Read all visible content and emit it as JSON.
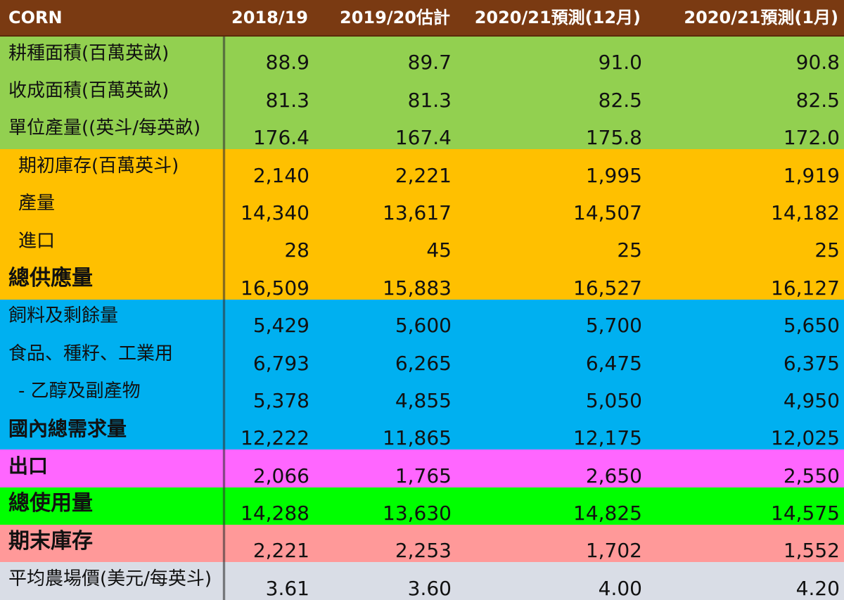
{
  "header": {
    "title": "CORN",
    "columns": [
      "2018/19",
      "2019/20估計",
      "2020/21預測(12月)",
      "2020/21預測(1月)"
    ]
  },
  "colors": {
    "header": "#7a3a12",
    "green": "#92d050",
    "orange": "#ffc000",
    "blue": "#00b0f0",
    "pink": "#ff66ff",
    "lime": "#00ff00",
    "salmon": "#ff9999",
    "gray": "#d9dde6"
  },
  "rows": [
    {
      "label": "耕種面積(百萬英畝)",
      "values": [
        "88.9",
        "89.7",
        "91.0",
        "90.8"
      ]
    },
    {
      "label": "收成面積(百萬英畝)",
      "values": [
        "81.3",
        "81.3",
        "82.5",
        "82.5"
      ]
    },
    {
      "label": "單位產量((英斗/每英畝)",
      "values": [
        "176.4",
        "167.4",
        "175.8",
        "172.0"
      ]
    },
    {
      "label": "期初庫存(百萬英斗)",
      "values": [
        "2,140",
        "2,221",
        "1,995",
        "1,919"
      ]
    },
    {
      "label": "產量",
      "values": [
        "14,340",
        "13,617",
        "14,507",
        "14,182"
      ]
    },
    {
      "label": "進口",
      "values": [
        "28",
        "45",
        "25",
        "25"
      ]
    },
    {
      "label": "總供應量",
      "values": [
        "16,509",
        "15,883",
        "16,527",
        "16,127"
      ]
    },
    {
      "label": "飼料及剩餘量",
      "values": [
        "5,429",
        "5,600",
        "5,700",
        "5,650"
      ]
    },
    {
      "label": "食品、種籽、工業用",
      "values": [
        "6,793",
        "6,265",
        "6,475",
        "6,375"
      ]
    },
    {
      "label": "- 乙醇及副產物",
      "values": [
        "5,378",
        "4,855",
        "5,050",
        "4,950"
      ]
    },
    {
      "label": "國內總需求量",
      "values": [
        "12,222",
        "11,865",
        "12,175",
        "12,025"
      ]
    },
    {
      "label": "出口",
      "values": [
        "2,066",
        "1,765",
        "2,650",
        "2,550"
      ]
    },
    {
      "label": "總使用量",
      "values": [
        "14,288",
        "13,630",
        "14,825",
        "14,575"
      ]
    },
    {
      "label": "期末庫存",
      "values": [
        "2,221",
        "2,253",
        "1,702",
        "1,552"
      ]
    },
    {
      "label": "平均農場價(美元/每英斗)",
      "values": [
        "3.61",
        "3.60",
        "4.00",
        "4.20"
      ]
    }
  ]
}
